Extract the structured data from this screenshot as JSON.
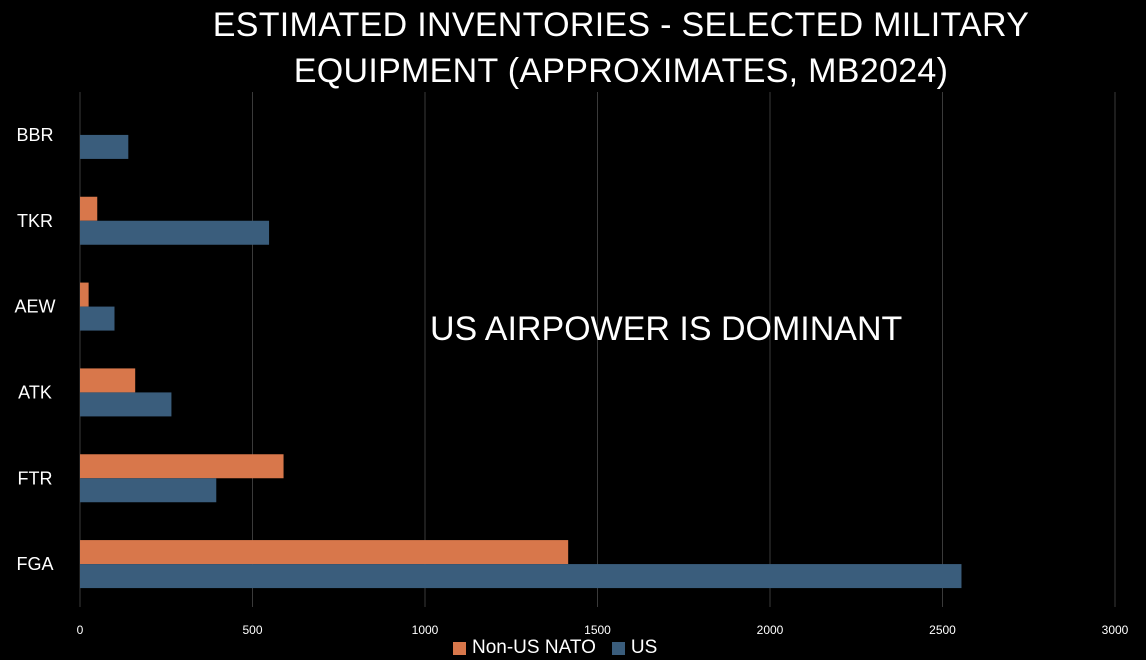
{
  "chart_data": {
    "type": "bar",
    "orientation": "horizontal",
    "title_lines": [
      "ESTIMATED INVENTORIES - SELECTED MILITARY",
      "EQUIPMENT (APPROXIMATES, MB2024)"
    ],
    "categories": [
      "BBR",
      "TKR",
      "AEW",
      "ATK",
      "FTR",
      "FGA"
    ],
    "series": [
      {
        "name": "Non-US NATO",
        "color": "#d8774b",
        "values": [
          0,
          50,
          25,
          160,
          590,
          1415
        ]
      },
      {
        "name": "US",
        "color": "#3a5d7c",
        "values": [
          140,
          548,
          100,
          265,
          395,
          2555
        ]
      }
    ],
    "xlim": [
      0,
      3000
    ],
    "xticks": [
      0,
      500,
      1000,
      1500,
      2000,
      2500,
      3000
    ],
    "grid": true,
    "legend_position": "bottom-center",
    "annotation": "US AIRPOWER IS DOMINANT"
  }
}
